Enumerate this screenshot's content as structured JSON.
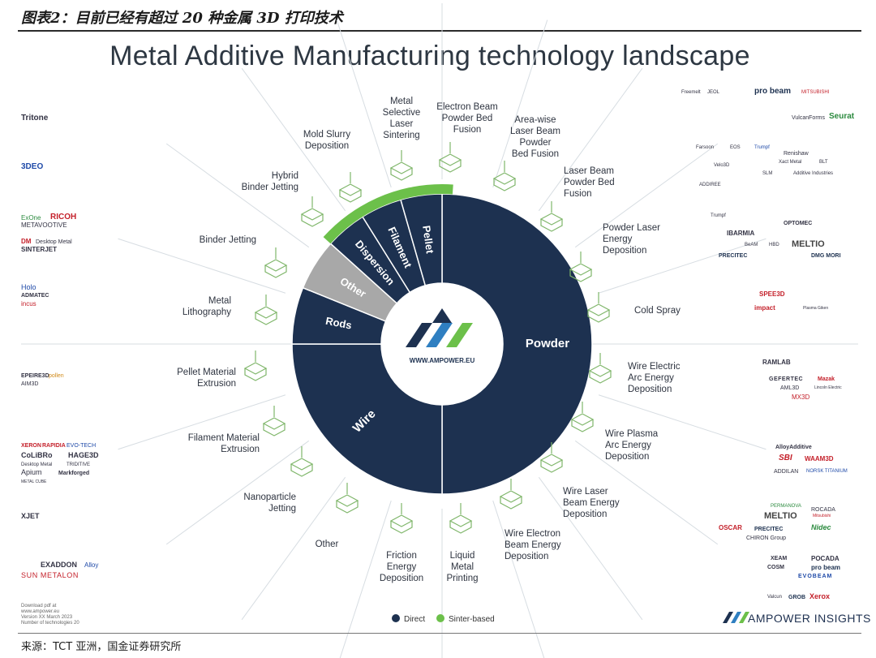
{
  "report_title": "图表2：目前已经有超过 20 种金属 3D 打印技术",
  "source": "来源：TCT 亚洲，国金证券研究所",
  "main_title": "Metal Additive Manufacturing technology landscape",
  "center_url": "WWW.AMPOWER.EU",
  "brand": "AMPOWER INSIGHTS",
  "legend": {
    "direct": "Direct",
    "sinter": "Sinter-based"
  },
  "colors": {
    "navy": "#1d3150",
    "green": "#6cc04a",
    "gray": "#a8a8a8",
    "line": "#d7dde2",
    "icon": "#7fb66a"
  },
  "segments": [
    {
      "name": "Powder",
      "value": 180,
      "color": "#1d3150",
      "type": "direct",
      "text_color": "#ffffff"
    },
    {
      "name": "Wire",
      "value": 90,
      "color": "#1d3150",
      "type": "direct",
      "text_color": "#ffffff"
    },
    {
      "name": "Rods",
      "value": 22,
      "color": "#1d3150",
      "type": "direct",
      "text_color": "#ffffff"
    },
    {
      "name": "Other",
      "value": 20,
      "color": "#a8a8a8",
      "type": "other",
      "text_color": "#ffffff"
    },
    {
      "name": "Dispersion",
      "value": 16,
      "color": "#1d3150",
      "type": "direct",
      "text_color": "#ffffff"
    },
    {
      "name": "Filament",
      "value": 16,
      "color": "#1d3150",
      "type": "direct",
      "text_color": "#ffffff"
    },
    {
      "name": "Pellet",
      "value": 16,
      "color": "#1d3150",
      "type": "direct",
      "text_color": "#ffffff"
    }
  ],
  "sinter_arc_label": "Sinter-based",
  "technologies": [
    {
      "name": "Metal\nSelective\nLaser\nSintering",
      "side": "top"
    },
    {
      "name": "Electron Beam\nPowder Bed\nFusion",
      "side": "top"
    },
    {
      "name": "Area-wise\nLaser Beam\nPowder\nBed Fusion",
      "side": "top"
    },
    {
      "name": "Laser Beam\nPowder Bed\nFusion",
      "side": "right"
    },
    {
      "name": "Powder Laser\nEnergy\nDeposition",
      "side": "right"
    },
    {
      "name": "Cold Spray",
      "side": "right"
    },
    {
      "name": "Wire Electric\nArc Energy\nDeposition",
      "side": "right"
    },
    {
      "name": "Wire Plasma\nArc Energy\nDeposition",
      "side": "right"
    },
    {
      "name": "Wire Laser\nBeam Energy\nDeposition",
      "side": "right"
    },
    {
      "name": "Wire Electron\nBeam Energy\nDeposition",
      "side": "bottom"
    },
    {
      "name": "Liquid\nMetal\nPrinting",
      "side": "bottom"
    },
    {
      "name": "Friction\nEnergy\nDeposition",
      "side": "bottom"
    },
    {
      "name": "Other",
      "side": "left"
    },
    {
      "name": "Nanoparticle\nJetting",
      "side": "left"
    },
    {
      "name": "Filament Material\nExtrusion",
      "side": "left"
    },
    {
      "name": "Pellet Material\nExtrusion",
      "side": "left"
    },
    {
      "name": "Metal\nLithography",
      "side": "left"
    },
    {
      "name": "Binder Jetting",
      "side": "left"
    },
    {
      "name": "Hybrid\nBinder Jetting",
      "side": "left"
    },
    {
      "name": "Mold Slurry\nDeposition",
      "side": "top"
    }
  ],
  "vendors": {
    "tritone": "Tritone",
    "xjet_group": [
      "3DEO"
    ],
    "binder_vendors": [
      "ExOne",
      "RICOH",
      "METAVOOTIVE",
      "DM",
      "Desktop Metal",
      "SINTERJET"
    ],
    "litho_vendors": [
      "Holo",
      "ADMATEC",
      "incus"
    ],
    "pellet_vendors": [
      "EPEIRE3D",
      "pollen",
      "AIM3D"
    ],
    "filament_vendors": [
      "XERON",
      "RAPIDIA",
      "EVO-TECH",
      "CoLiBRo",
      "HAGE3D",
      "Desktop Metal",
      "TRIDITIVE",
      "Apium",
      "Markforged",
      "METAL CUBE"
    ],
    "nano_vendors": [
      "XJET"
    ],
    "other_vendors": [
      "EXADDON",
      "Alloy",
      "SUN METALON"
    ],
    "ebm_vendors": [
      "pro beam",
      "Freemelt",
      "JEOL",
      "MITSUBISHI"
    ],
    "area_vendors": [
      "VulcanForms",
      "Seurat"
    ],
    "lpbf_vendors": [
      "Farsoon",
      "EOS",
      "Trumpf",
      "Renishaw",
      "SLM",
      "Velo3D",
      "Additive Industries",
      "Xact Metal",
      "BLT",
      "ADDIREE"
    ],
    "plasma_vendors": [
      "DMG MORI",
      "MELTIO",
      "OPTOMEC",
      "IBARMIA",
      "PRECITEC",
      "BeAM",
      "HBD",
      "Trumpf"
    ],
    "cold_vendors": [
      "SPEE3D",
      "impact",
      "Plasma Giken"
    ],
    "waam_vendors": [
      "RAMLAB",
      "GEFERTEC",
      "Mazak",
      "AML3D",
      "MX3D",
      "Lincoln Electric"
    ],
    "wpaam_vendors": [
      "AlloyAdditive",
      "SBI",
      "WAAM3D",
      "ADDILAN",
      "NORSK TITANIUM"
    ],
    "wlam_vendors": [
      "PERMANOVA",
      "ROCADA",
      "MELTIO",
      "OSCAR",
      "PRECITEC",
      "Nidec",
      "CHIRON Group",
      "Mitsubishi"
    ],
    "webam_vendors": [
      "XEAM",
      "POCADA",
      "COSM",
      "pro beam",
      "EVOBEAM",
      "Xerox",
      "GROB",
      "Valcun"
    ],
    "fine_print": [
      "Download pdf at",
      "www.ampower.eu",
      "Version XX March 2023",
      "Number of technologies 20"
    ]
  }
}
